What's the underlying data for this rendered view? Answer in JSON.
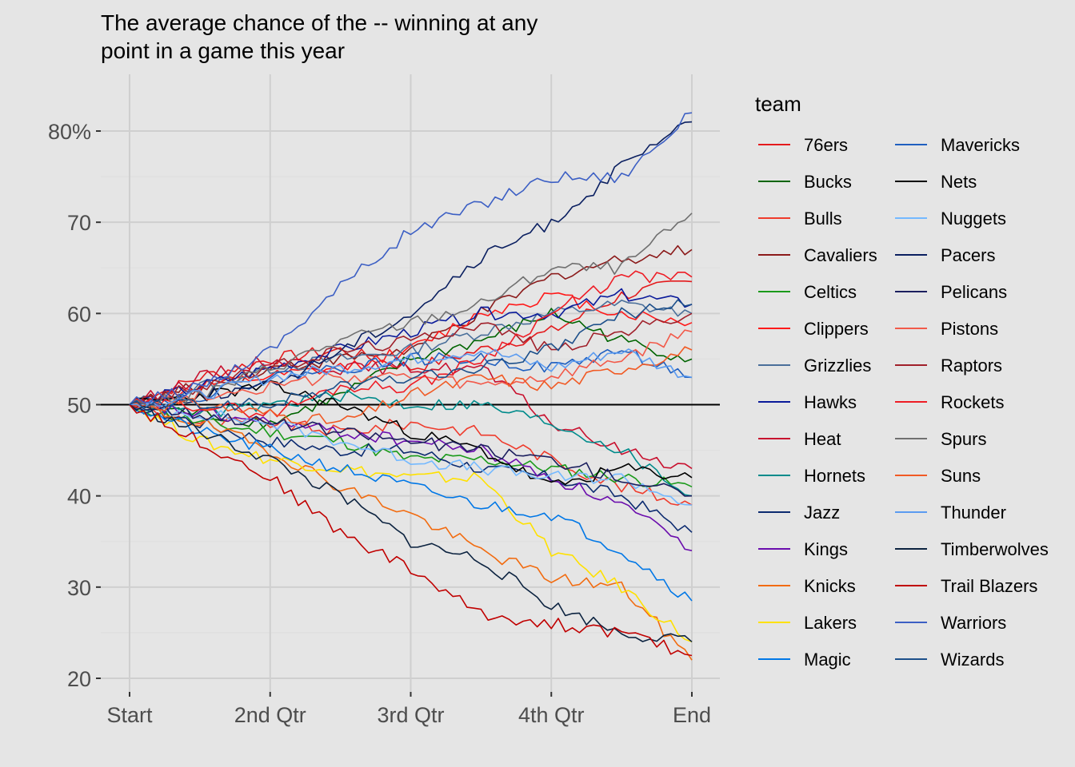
{
  "chart_data": {
    "type": "line",
    "title": "The average chance of the -- winning at any point in a game this year",
    "title_lines": [
      "The average chance of the -- winning at any",
      "point in a game this year"
    ],
    "xlabel": "",
    "ylabel": "",
    "x_ticks": [
      "Start",
      "2nd Qtr",
      "3rd Qtr",
      "4th Qtr",
      "End"
    ],
    "xlim": [
      0,
      4
    ],
    "ylim": [
      20,
      85
    ],
    "y_ticks": [
      {
        "value": 20,
        "label": "20"
      },
      {
        "value": 30,
        "label": "30"
      },
      {
        "value": 40,
        "label": "40"
      },
      {
        "value": 50,
        "label": "50"
      },
      {
        "value": 60,
        "label": "60"
      },
      {
        "value": 70,
        "label": "70"
      },
      {
        "value": 80,
        "label": "80%"
      }
    ],
    "reference_line": 50,
    "grid": true,
    "legend": {
      "title": "team",
      "placement": "right",
      "columns": 2
    },
    "series": [
      {
        "name": "76ers",
        "color": "#e41a1c",
        "values": [
          [
            0,
            50
          ],
          [
            0.5,
            53
          ],
          [
            1,
            55
          ],
          [
            1.5,
            56
          ],
          [
            2,
            54
          ],
          [
            2.5,
            56
          ],
          [
            3,
            58
          ],
          [
            3.5,
            62
          ],
          [
            4,
            63.5
          ]
        ]
      },
      {
        "name": "Bucks",
        "color": "#006400",
        "values": [
          [
            0,
            50
          ],
          [
            0.5,
            49
          ],
          [
            1,
            48
          ],
          [
            1.5,
            51
          ],
          [
            2,
            55
          ],
          [
            2.5,
            57
          ],
          [
            3,
            60
          ],
          [
            3.5,
            57
          ],
          [
            4,
            55
          ]
        ]
      },
      {
        "name": "Bulls",
        "color": "#ef3b2c",
        "values": [
          [
            0,
            50
          ],
          [
            0.5,
            48
          ],
          [
            1,
            48
          ],
          [
            1.5,
            47
          ],
          [
            2,
            48
          ],
          [
            2.5,
            47
          ],
          [
            3,
            44
          ],
          [
            3.5,
            41
          ],
          [
            4,
            39
          ]
        ]
      },
      {
        "name": "Cavaliers",
        "color": "#8b1a1a",
        "values": [
          [
            0,
            50
          ],
          [
            0.5,
            52
          ],
          [
            1,
            54
          ],
          [
            1.5,
            55
          ],
          [
            2,
            56
          ],
          [
            2.5,
            60
          ],
          [
            3,
            64
          ],
          [
            3.5,
            66
          ],
          [
            4,
            67
          ]
        ]
      },
      {
        "name": "Celtics",
        "color": "#1a9a1a",
        "values": [
          [
            0,
            50
          ],
          [
            0.5,
            48
          ],
          [
            1,
            47
          ],
          [
            1.5,
            46
          ],
          [
            2,
            44
          ],
          [
            2.5,
            44
          ],
          [
            3,
            43
          ],
          [
            3.5,
            42
          ],
          [
            4,
            41
          ]
        ]
      },
      {
        "name": "Clippers",
        "color": "#ff1a1a",
        "values": [
          [
            0,
            50
          ],
          [
            0.5,
            52
          ],
          [
            1,
            53
          ],
          [
            1.5,
            54
          ],
          [
            2,
            56
          ],
          [
            2.5,
            60
          ],
          [
            3,
            62
          ],
          [
            3.5,
            60
          ],
          [
            4,
            59
          ]
        ]
      },
      {
        "name": "Grizzlies",
        "color": "#4a6f9a",
        "values": [
          [
            0,
            50
          ],
          [
            0.5,
            52
          ],
          [
            1,
            54
          ],
          [
            1.5,
            55
          ],
          [
            2,
            56
          ],
          [
            2.5,
            58
          ],
          [
            3,
            60
          ],
          [
            3.5,
            61
          ],
          [
            4,
            60
          ]
        ]
      },
      {
        "name": "Hawks",
        "color": "#0a1a9a",
        "values": [
          [
            0,
            50
          ],
          [
            0.5,
            52
          ],
          [
            1,
            54
          ],
          [
            1.5,
            56
          ],
          [
            2,
            58
          ],
          [
            2.5,
            60
          ],
          [
            3,
            60
          ],
          [
            3.5,
            62
          ],
          [
            4,
            61
          ]
        ]
      },
      {
        "name": "Heat",
        "color": "#c8102e",
        "values": [
          [
            0,
            50
          ],
          [
            0.5,
            53
          ],
          [
            1,
            55
          ],
          [
            1.5,
            54
          ],
          [
            2,
            54
          ],
          [
            2.5,
            54
          ],
          [
            3,
            48
          ],
          [
            3.5,
            45
          ],
          [
            4,
            43
          ]
        ]
      },
      {
        "name": "Hornets",
        "color": "#008b8b",
        "values": [
          [
            0,
            50
          ],
          [
            0.5,
            49
          ],
          [
            1,
            50
          ],
          [
            1.5,
            51
          ],
          [
            2,
            50
          ],
          [
            2.5,
            50
          ],
          [
            3,
            48
          ],
          [
            3.5,
            45
          ],
          [
            4,
            40
          ]
        ]
      },
      {
        "name": "Jazz",
        "color": "#0b2a6f",
        "values": [
          [
            0,
            50
          ],
          [
            0.5,
            48
          ],
          [
            1,
            46
          ],
          [
            1.5,
            45
          ],
          [
            2,
            45
          ],
          [
            2.5,
            43
          ],
          [
            3,
            42
          ],
          [
            3.5,
            40
          ],
          [
            4,
            36
          ]
        ]
      },
      {
        "name": "Kings",
        "color": "#6a0dad",
        "values": [
          [
            0,
            50
          ],
          [
            0.5,
            49
          ],
          [
            1,
            48
          ],
          [
            1.5,
            47
          ],
          [
            2,
            46
          ],
          [
            2.5,
            45
          ],
          [
            3,
            42
          ],
          [
            3.5,
            39
          ],
          [
            4,
            34
          ]
        ]
      },
      {
        "name": "Knicks",
        "color": "#f26b0f",
        "values": [
          [
            0,
            50
          ],
          [
            0.5,
            48
          ],
          [
            1,
            45
          ],
          [
            1.5,
            41
          ],
          [
            2,
            38
          ],
          [
            2.5,
            34
          ],
          [
            3,
            31
          ],
          [
            3.5,
            30
          ],
          [
            4,
            22
          ]
        ]
      },
      {
        "name": "Lakers",
        "color": "#ffe100",
        "values": [
          [
            0,
            50
          ],
          [
            0.5,
            46
          ],
          [
            1,
            44
          ],
          [
            1.5,
            43
          ],
          [
            2,
            42
          ],
          [
            2.5,
            42
          ],
          [
            3,
            34
          ],
          [
            3.5,
            30
          ],
          [
            4,
            24
          ]
        ]
      },
      {
        "name": "Magic",
        "color": "#0077e6",
        "values": [
          [
            0,
            50
          ],
          [
            0.5,
            47
          ],
          [
            1,
            45
          ],
          [
            1.5,
            43
          ],
          [
            2,
            41
          ],
          [
            2.5,
            39
          ],
          [
            3,
            38
          ],
          [
            3.5,
            34
          ],
          [
            4,
            28.5
          ]
        ]
      },
      {
        "name": "Mavericks",
        "color": "#1f5fbf",
        "values": [
          [
            0,
            50
          ],
          [
            0.5,
            51
          ],
          [
            1,
            53
          ],
          [
            1.5,
            54
          ],
          [
            2,
            55
          ],
          [
            2.5,
            55
          ],
          [
            3,
            54
          ],
          [
            3.5,
            56
          ],
          [
            4,
            53
          ]
        ]
      },
      {
        "name": "Nets",
        "color": "#000000",
        "values": [
          [
            0,
            50
          ],
          [
            0.5,
            51
          ],
          [
            1,
            52
          ],
          [
            1.5,
            50
          ],
          [
            2,
            47
          ],
          [
            2.5,
            45
          ],
          [
            3,
            41
          ],
          [
            3.5,
            43
          ],
          [
            4,
            42
          ]
        ]
      },
      {
        "name": "Nuggets",
        "color": "#74b9ff",
        "values": [
          [
            0,
            50
          ],
          [
            0.5,
            49
          ],
          [
            1,
            48
          ],
          [
            1.5,
            46
          ],
          [
            2,
            44
          ],
          [
            2.5,
            43
          ],
          [
            3,
            42
          ],
          [
            3.5,
            42
          ],
          [
            4,
            39
          ]
        ]
      },
      {
        "name": "Pacers",
        "color": "#0a1f60",
        "values": [
          [
            0,
            50
          ],
          [
            0.5,
            51
          ],
          [
            1,
            52
          ],
          [
            1.5,
            56
          ],
          [
            2,
            60
          ],
          [
            2.5,
            66
          ],
          [
            3,
            70
          ],
          [
            3.5,
            76
          ],
          [
            4,
            81
          ]
        ]
      },
      {
        "name": "Pelicans",
        "color": "#1b1f5e",
        "values": [
          [
            0,
            50
          ],
          [
            0.5,
            49
          ],
          [
            1,
            48
          ],
          [
            1.5,
            47
          ],
          [
            2,
            46
          ],
          [
            2.5,
            45
          ],
          [
            3,
            44
          ],
          [
            3.5,
            42
          ],
          [
            4,
            40
          ]
        ]
      },
      {
        "name": "Pistons",
        "color": "#f25a4a",
        "values": [
          [
            0,
            50
          ],
          [
            0.5,
            51
          ],
          [
            1,
            52
          ],
          [
            1.5,
            53
          ],
          [
            2,
            53
          ],
          [
            2.5,
            52
          ],
          [
            3,
            53
          ],
          [
            3.5,
            55
          ],
          [
            4,
            58
          ]
        ]
      },
      {
        "name": "Raptors",
        "color": "#a0202a",
        "values": [
          [
            0,
            50
          ],
          [
            0.5,
            52
          ],
          [
            1,
            54
          ],
          [
            1.5,
            56
          ],
          [
            2,
            57
          ],
          [
            2.5,
            59
          ],
          [
            3,
            56
          ],
          [
            3.5,
            58
          ],
          [
            4,
            60
          ]
        ]
      },
      {
        "name": "Rockets",
        "color": "#ee1c25",
        "values": [
          [
            0,
            50
          ],
          [
            0.5,
            50
          ],
          [
            1,
            49
          ],
          [
            1.5,
            52
          ],
          [
            2,
            52
          ],
          [
            2.5,
            55
          ],
          [
            3,
            60
          ],
          [
            3.5,
            64
          ],
          [
            4,
            64
          ]
        ]
      },
      {
        "name": "Spurs",
        "color": "#707070",
        "values": [
          [
            0,
            50
          ],
          [
            0.5,
            51
          ],
          [
            1,
            54
          ],
          [
            1.5,
            57
          ],
          [
            2,
            59
          ],
          [
            2.5,
            61
          ],
          [
            3,
            65
          ],
          [
            3.5,
            65
          ],
          [
            4,
            71
          ]
        ]
      },
      {
        "name": "Suns",
        "color": "#f15a24",
        "values": [
          [
            0,
            50
          ],
          [
            0.5,
            50
          ],
          [
            1,
            49
          ],
          [
            1.5,
            48
          ],
          [
            2,
            51
          ],
          [
            2.5,
            53
          ],
          [
            3,
            52
          ],
          [
            3.5,
            54
          ],
          [
            4,
            56
          ]
        ]
      },
      {
        "name": "Thunder",
        "color": "#5b9bf0",
        "values": [
          [
            0,
            50
          ],
          [
            0.5,
            51
          ],
          [
            1,
            53
          ],
          [
            1.5,
            54
          ],
          [
            2,
            55
          ],
          [
            2.5,
            56
          ],
          [
            3,
            54
          ],
          [
            3.5,
            56
          ],
          [
            4,
            53
          ]
        ]
      },
      {
        "name": "Timberwolves",
        "color": "#0c2340",
        "values": [
          [
            0,
            50
          ],
          [
            0.5,
            47
          ],
          [
            1,
            44
          ],
          [
            1.5,
            40
          ],
          [
            2,
            35
          ],
          [
            2.5,
            33
          ],
          [
            3,
            28
          ],
          [
            3.5,
            25
          ],
          [
            4,
            24
          ]
        ]
      },
      {
        "name": "Trail Blazers",
        "color": "#c00000",
        "values": [
          [
            0,
            50
          ],
          [
            0.5,
            46
          ],
          [
            1,
            42
          ],
          [
            1.5,
            36
          ],
          [
            2,
            32
          ],
          [
            2.5,
            27
          ],
          [
            3,
            26
          ],
          [
            3.5,
            25
          ],
          [
            4,
            22.5
          ]
        ]
      },
      {
        "name": "Warriors",
        "color": "#3c5fc4",
        "values": [
          [
            0,
            50
          ],
          [
            0.5,
            52
          ],
          [
            1,
            56
          ],
          [
            1.5,
            63
          ],
          [
            2,
            69
          ],
          [
            2.5,
            72
          ],
          [
            3,
            75
          ],
          [
            3.5,
            75
          ],
          [
            4,
            82
          ]
        ]
      },
      {
        "name": "Wizards",
        "color": "#1c4f8a",
        "values": [
          [
            0,
            50
          ],
          [
            0.5,
            50
          ],
          [
            1,
            50
          ],
          [
            1.5,
            52
          ],
          [
            2,
            53
          ],
          [
            2.5,
            54
          ],
          [
            3,
            56
          ],
          [
            3.5,
            60
          ],
          [
            4,
            61
          ]
        ]
      }
    ]
  }
}
